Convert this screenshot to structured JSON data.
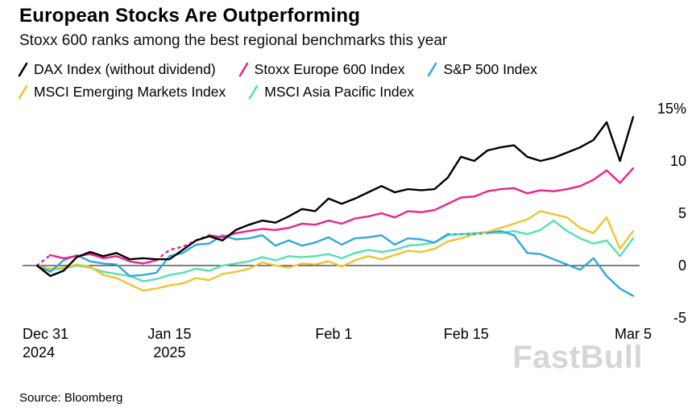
{
  "header": {
    "title": "European Stocks Are Outperforming",
    "subtitle": "Stoxx 600 ranks among the best regional benchmarks this year"
  },
  "chart_data": {
    "type": "line",
    "title": "European Stocks Are Outperforming",
    "subtitle": "Stoxx 600 ranks among the best regional benchmarks this year",
    "x": [
      "Dec 31",
      "Jan 2",
      "Jan 3",
      "Jan 6",
      "Jan 7",
      "Jan 8",
      "Jan 9",
      "Jan 10",
      "Jan 13",
      "Jan 14",
      "Jan 15",
      "Jan 16",
      "Jan 17",
      "Jan 20",
      "Jan 21",
      "Jan 22",
      "Jan 23",
      "Jan 24",
      "Jan 27",
      "Jan 28",
      "Jan 29",
      "Jan 30",
      "Jan 31",
      "Feb 3",
      "Feb 4",
      "Feb 5",
      "Feb 6",
      "Feb 7",
      "Feb 10",
      "Feb 11",
      "Feb 12",
      "Feb 13",
      "Feb 14",
      "Feb 17",
      "Feb 18",
      "Feb 19",
      "Feb 20",
      "Feb 21",
      "Feb 24",
      "Feb 25",
      "Feb 26",
      "Feb 27",
      "Feb 28",
      "Mar 3",
      "Mar 4",
      "Mar 5"
    ],
    "series": [
      {
        "id": "dax",
        "name": "DAX Index (without dividend)",
        "color": "#000000",
        "values": [
          0,
          -1.0,
          -0.5,
          0.8,
          1.3,
          0.9,
          1.2,
          0.6,
          0.7,
          0.6,
          0.6,
          1.5,
          2.4,
          2.8,
          2.4,
          3.4,
          3.9,
          4.3,
          4.1,
          4.7,
          5.4,
          5.2,
          6.4,
          5.9,
          6.4,
          7.0,
          7.6,
          7.0,
          7.3,
          7.2,
          7.3,
          8.4,
          10.4,
          10.0,
          11.0,
          11.3,
          11.5,
          10.4,
          10.0,
          10.3,
          10.8,
          11.3,
          12.0,
          13.7,
          10.0,
          14.2
        ]
      },
      {
        "id": "stoxx-600",
        "name": "Stoxx Europe 600 Index",
        "color": "#ea2290",
        "dash_ranges": [
          [
            0,
            1
          ],
          [
            9,
            13
          ]
        ],
        "values": [
          0,
          1.0,
          0.7,
          0.9,
          1.1,
          0.7,
          0.9,
          0.4,
          0.2,
          0.5,
          1.5,
          1.8,
          2.4,
          2.9,
          2.7,
          3.1,
          3.3,
          3.5,
          3.4,
          3.6,
          4.0,
          3.9,
          4.3,
          4.0,
          4.5,
          4.7,
          5.0,
          4.6,
          5.2,
          5.1,
          5.3,
          5.9,
          6.5,
          6.6,
          7.1,
          7.3,
          7.4,
          6.9,
          7.2,
          7.1,
          7.3,
          7.6,
          8.2,
          9.1,
          7.9,
          9.3
        ]
      },
      {
        "id": "sp500",
        "name": "S&P 500 Index",
        "color": "#31a8e0",
        "dash_ranges": [
          [
            31,
            34
          ]
        ],
        "values": [
          0,
          -0.6,
          0.5,
          1.0,
          0.4,
          0.2,
          0.1,
          -1.0,
          -0.9,
          -0.7,
          0.9,
          1.2,
          2.0,
          2.1,
          2.9,
          2.5,
          2.6,
          2.9,
          1.9,
          2.4,
          1.9,
          2.2,
          2.7,
          2.0,
          2.6,
          2.7,
          2.9,
          2.0,
          2.6,
          2.5,
          2.2,
          3.0,
          3.0,
          3.0,
          3.1,
          3.3,
          2.9,
          1.2,
          1.1,
          0.6,
          0.1,
          -0.4,
          0.7,
          -1.0,
          -2.2,
          -2.9
        ]
      },
      {
        "id": "msci-em",
        "name": "MSCI Emerging Markets Index",
        "color": "#f0c330",
        "values": [
          0,
          -0.3,
          -0.2,
          0.1,
          -0.1,
          -0.9,
          -1.2,
          -1.8,
          -2.4,
          -2.2,
          -1.9,
          -1.7,
          -1.2,
          -1.4,
          -0.8,
          -0.6,
          -0.3,
          0.3,
          0.0,
          -0.2,
          0.2,
          0.1,
          0.4,
          -0.1,
          0.5,
          0.9,
          0.6,
          1.0,
          1.4,
          1.3,
          1.6,
          2.3,
          2.6,
          3.0,
          3.2,
          3.6,
          4.0,
          4.4,
          5.2,
          4.9,
          4.6,
          3.6,
          3.1,
          4.6,
          1.6,
          3.3
        ]
      },
      {
        "id": "msci-ap",
        "name": "MSCI Asia Pacific Index",
        "color": "#52e2b2",
        "values": [
          0,
          -0.4,
          -0.3,
          0.0,
          -0.2,
          -0.6,
          -0.8,
          -1.0,
          -1.5,
          -1.3,
          -0.9,
          -0.7,
          -0.3,
          -0.5,
          0.0,
          0.2,
          0.4,
          0.8,
          0.5,
          0.9,
          0.8,
          0.9,
          1.1,
          0.7,
          1.2,
          1.5,
          1.3,
          1.5,
          1.9,
          2.0,
          2.2,
          2.9,
          3.0,
          3.1,
          3.2,
          3.1,
          3.3,
          3.0,
          3.4,
          4.3,
          3.3,
          2.6,
          2.1,
          2.4,
          0.9,
          2.6
        ]
      }
    ],
    "ylim": [
      -7,
      15.5
    ],
    "yticks": [
      {
        "value": 15,
        "label": "15%"
      },
      {
        "value": 10,
        "label": "10"
      },
      {
        "value": 5,
        "label": "5"
      },
      {
        "value": 0,
        "label": "0"
      },
      {
        "value": -5,
        "label": "-5"
      }
    ],
    "xticks": [
      {
        "pos": 0,
        "label": "Dec 31",
        "sublabel": "2024",
        "align": "left"
      },
      {
        "pos": 10,
        "label": "Jan 15",
        "sublabel": "2025",
        "align": "center"
      },
      {
        "pos": 22.4,
        "label": "Feb 1",
        "align": "center"
      },
      {
        "pos": 32.4,
        "label": "Feb 15",
        "align": "center"
      },
      {
        "pos": 45,
        "label": "Mar 5",
        "align": "center"
      }
    ],
    "zero_line": true,
    "grid": false,
    "legend_position": "top-left"
  },
  "footer": {
    "source": "Source: Bloomberg"
  },
  "watermark": {
    "text": "FastBull"
  }
}
